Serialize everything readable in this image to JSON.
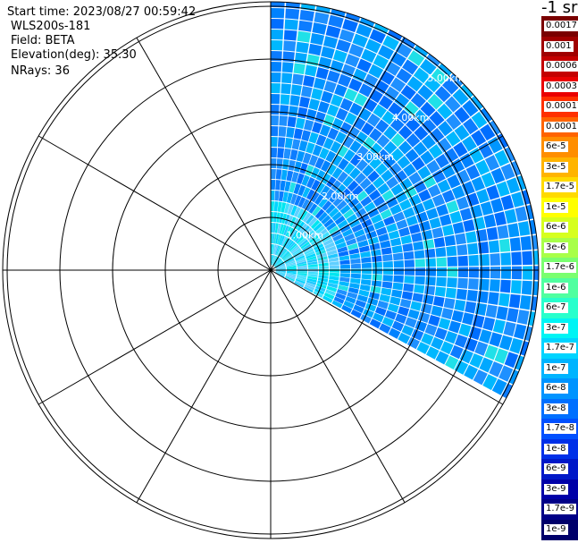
{
  "info": {
    "start_time": "Start time: 2023/08/27 00:59:42",
    "site": "WLS200s-181",
    "field": "Field: BETA",
    "elevation": "Elevation(deg): 35.30",
    "nrays": "NRays: 36"
  },
  "range_labels": [
    "1.00km",
    "2.00km",
    "3.00km",
    "4.00km",
    "5.00km"
  ],
  "colorbar": {
    "title": "-1 sr",
    "labels": [
      "0.0017",
      "0.001",
      "0.0006",
      "0.0003",
      "0.00017",
      "0.0001",
      "6e-5",
      "3e-5",
      "1.7e-5",
      "1e-5",
      "6e-6",
      "3e-6",
      "1.7e-6",
      "1e-6",
      "6e-7",
      "3e-7",
      "1.7e-7",
      "1e-7",
      "6e-8",
      "3e-8",
      "1.7e-8",
      "1e-8",
      "6e-9",
      "3e-9",
      "1.7e-9",
      "1e-9"
    ],
    "colors": [
      "#7a0000",
      "#a00000",
      "#c40000",
      "#ea0000",
      "#ff3000",
      "#ff6400",
      "#ff8e00",
      "#ffb400",
      "#ffda00",
      "#ffff00",
      "#d6ff1e",
      "#a8ff48",
      "#7aff70",
      "#50ffa0",
      "#28ffcc",
      "#00f4f4",
      "#00d4ff",
      "#00b4ff",
      "#0094ff",
      "#0070ff",
      "#0050ff",
      "#0030e8",
      "#0018c8",
      "#0000a8",
      "#000088",
      "#00006a"
    ]
  },
  "colors": {
    "plot_background": "#ffffff",
    "grid_lines": "#000000",
    "range_label": "#ffffff"
  }
}
